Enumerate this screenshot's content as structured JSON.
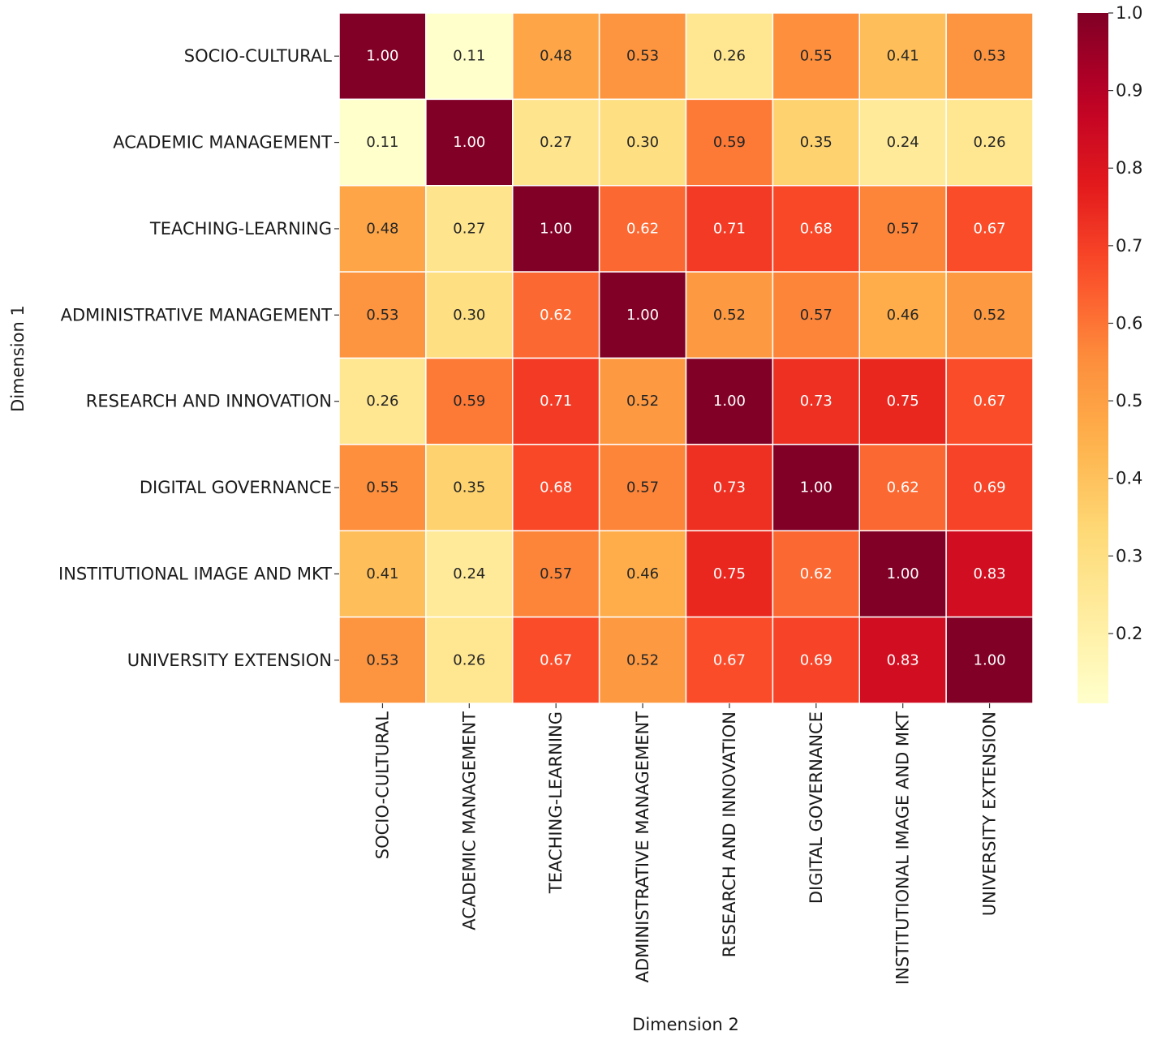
{
  "chart_data": {
    "type": "heatmap",
    "title": "",
    "xlabel": "Dimension 2",
    "ylabel": "Dimension 1",
    "categories": [
      "SOCIO-CULTURAL",
      "ACADEMIC MANAGEMENT",
      "TEACHING-LEARNING",
      "ADMINISTRATIVE MANAGEMENT",
      "RESEARCH AND INNOVATION",
      "DIGITAL GOVERNANCE",
      "INSTITUTIONAL IMAGE AND MKT",
      "UNIVERSITY EXTENSION"
    ],
    "matrix": [
      [
        1.0,
        0.11,
        0.48,
        0.53,
        0.26,
        0.55,
        0.41,
        0.53
      ],
      [
        0.11,
        1.0,
        0.27,
        0.3,
        0.59,
        0.35,
        0.24,
        0.26
      ],
      [
        0.48,
        0.27,
        1.0,
        0.62,
        0.71,
        0.68,
        0.57,
        0.67
      ],
      [
        0.53,
        0.3,
        0.62,
        1.0,
        0.52,
        0.57,
        0.46,
        0.52
      ],
      [
        0.26,
        0.59,
        0.71,
        0.52,
        1.0,
        0.73,
        0.75,
        0.67
      ],
      [
        0.55,
        0.35,
        0.68,
        0.57,
        0.73,
        1.0,
        0.62,
        0.69
      ],
      [
        0.41,
        0.24,
        0.57,
        0.46,
        0.75,
        0.62,
        1.0,
        0.83
      ],
      [
        0.53,
        0.26,
        0.67,
        0.52,
        0.67,
        0.69,
        0.83,
        1.0
      ]
    ],
    "value_format": "0.00",
    "colormap": "YlOrRd",
    "colorbar": {
      "range": [
        0.11,
        1.0
      ],
      "ticks": [
        0.2,
        0.3,
        0.4,
        0.5,
        0.6,
        0.7,
        0.8,
        0.9,
        1.0
      ],
      "tick_labels": [
        "0.2",
        "0.3",
        "0.4",
        "0.5",
        "0.6",
        "0.7",
        "0.8",
        "0.9",
        "1.0"
      ]
    }
  }
}
